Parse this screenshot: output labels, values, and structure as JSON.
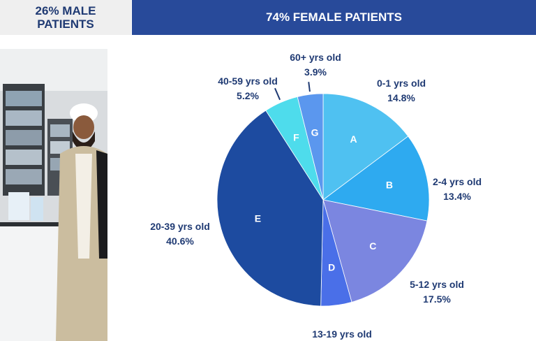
{
  "banners": {
    "male_line1": "26% MALE",
    "male_line2": "PATIENTS",
    "female": "74% FEMALE PATIENTS"
  },
  "chart_data": {
    "type": "pie",
    "title": "",
    "slices": [
      {
        "letter": "A",
        "label": "0-1 yrs old",
        "value": 14.8,
        "value_text": "14.8%",
        "color": "#4fc1f1"
      },
      {
        "letter": "B",
        "label": "2-4 yrs old",
        "value": 13.4,
        "value_text": "13.4%",
        "color": "#2eaaf0"
      },
      {
        "letter": "C",
        "label": "5-12 yrs old",
        "value": 17.5,
        "value_text": "17.5%",
        "color": "#7b86e0"
      },
      {
        "letter": "D",
        "label": "13-19 yrs old",
        "value": 4.7,
        "value_text": "",
        "color": "#4a6fe8"
      },
      {
        "letter": "E",
        "label": "20-39 yrs old",
        "value": 40.6,
        "value_text": "40.6%",
        "color": "#1d4ba0"
      },
      {
        "letter": "F",
        "label": "40-59 yrs old",
        "value": 5.2,
        "value_text": "5.2%",
        "color": "#4edcec"
      },
      {
        "letter": "G",
        "label": "60+ yrs old",
        "value": 3.9,
        "value_text": "3.9%",
        "color": "#5b97ee"
      }
    ]
  }
}
